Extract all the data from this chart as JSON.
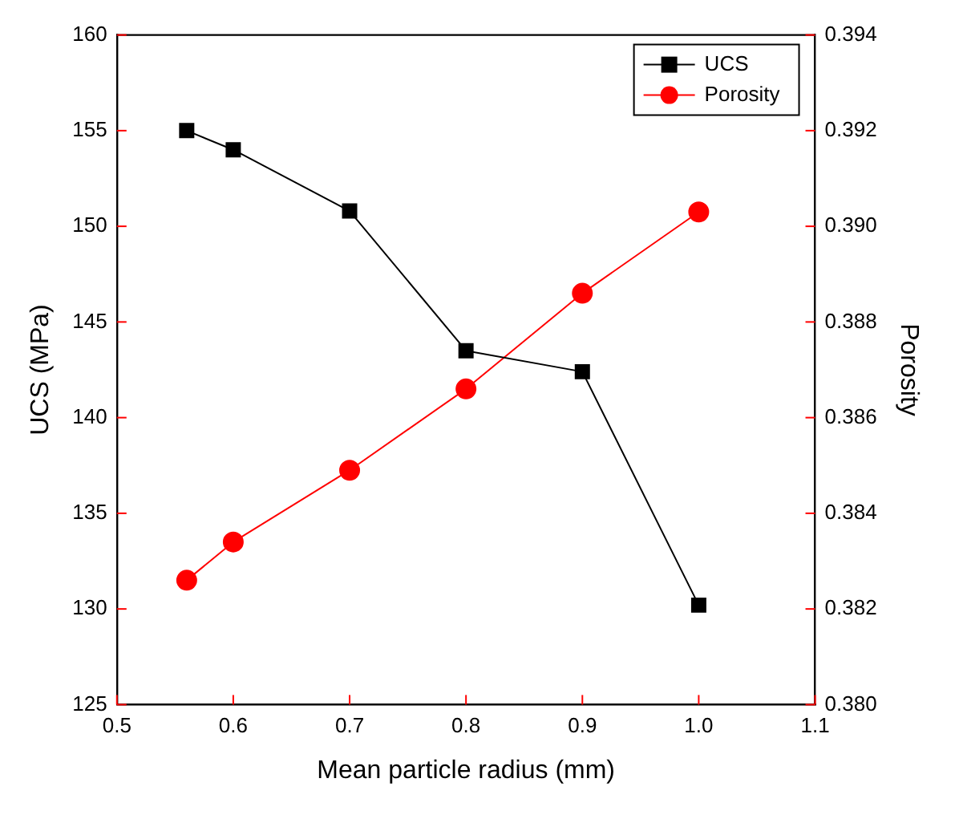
{
  "chart_data": {
    "type": "line",
    "xlabel": "Mean particle radius (mm)",
    "ylabel": "UCS (MPa)",
    "y2label": "Porosity",
    "xlim": [
      0.5,
      1.1
    ],
    "xticks": [
      0.5,
      0.6,
      0.7,
      0.8,
      0.9,
      {
        "value": 1,
        "label": "1.0"
      },
      1.1
    ],
    "ylim": [
      125,
      160
    ],
    "yticks": [
      125,
      130,
      135,
      140,
      145,
      150,
      155,
      160
    ],
    "y2lim": [
      0.38,
      0.394
    ],
    "y2ticks": [
      {
        "value": 0.38,
        "label": "0.380"
      },
      {
        "value": 0.382,
        "label": "0.382"
      },
      {
        "value": 0.384,
        "label": "0.384"
      },
      {
        "value": 0.386,
        "label": "0.386"
      },
      {
        "value": 0.388,
        "label": "0.388"
      },
      {
        "value": 0.39,
        "label": "0.390"
      },
      {
        "value": 0.392,
        "label": "0.392"
      },
      {
        "value": 0.394,
        "label": "0.394"
      }
    ],
    "x": [
      0.56,
      0.6,
      0.7,
      0.8,
      0.9,
      1.0
    ],
    "series": [
      {
        "name": "UCS",
        "color": "#000000",
        "marker": "square",
        "values": [
          155,
          154,
          150.8,
          143.5,
          142.4,
          130.2
        ]
      },
      {
        "name": "Porosity",
        "color": "#ff0000",
        "marker": "circle",
        "axis": "y2",
        "values": [
          0.3826,
          0.3834,
          0.3849,
          0.3866,
          0.3886,
          0.3903
        ]
      }
    ],
    "legend": "top right",
    "grid": false
  }
}
